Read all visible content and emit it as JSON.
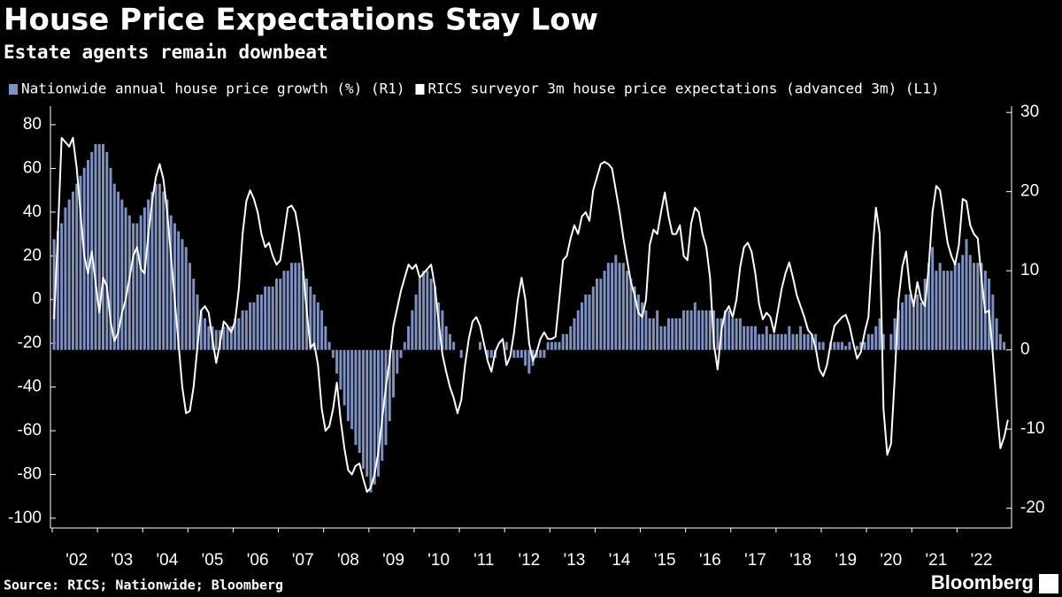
{
  "chart_data": {
    "type": "combo",
    "title": "House Price Expectations Stay Low",
    "subtitle": "Estate agents remain downbeat",
    "source": "Source: RICS; Nationwide; Bloomberg",
    "brand": "Bloomberg",
    "categories": [
      null,
      null,
      null,
      null,
      null,
      null,
      "'02",
      null,
      null,
      null,
      null,
      null,
      null,
      null,
      null,
      null,
      null,
      null,
      "'03",
      null,
      null,
      null,
      null,
      null,
      null,
      null,
      null,
      null,
      null,
      null,
      "'04",
      null,
      null,
      null,
      null,
      null,
      null,
      null,
      null,
      null,
      null,
      null,
      "'05",
      null,
      null,
      null,
      null,
      null,
      null,
      null,
      null,
      null,
      null,
      null,
      "'06",
      null,
      null,
      null,
      null,
      null,
      null,
      null,
      null,
      null,
      null,
      null,
      "'07",
      null,
      null,
      null,
      null,
      null,
      null,
      null,
      null,
      null,
      null,
      null,
      "'08",
      null,
      null,
      null,
      null,
      null,
      null,
      null,
      null,
      null,
      null,
      null,
      "'09",
      null,
      null,
      null,
      null,
      null,
      null,
      null,
      null,
      null,
      null,
      null,
      "'10",
      null,
      null,
      null,
      null,
      null,
      null,
      null,
      null,
      null,
      null,
      null,
      "'11",
      null,
      null,
      null,
      null,
      null,
      null,
      null,
      null,
      null,
      null,
      null,
      "'12",
      null,
      null,
      null,
      null,
      null,
      null,
      null,
      null,
      null,
      null,
      null,
      "'13",
      null,
      null,
      null,
      null,
      null,
      null,
      null,
      null,
      null,
      null,
      null,
      "'14",
      null,
      null,
      null,
      null,
      null,
      null,
      null,
      null,
      null,
      null,
      null,
      "'15",
      null,
      null,
      null,
      null,
      null,
      null,
      null,
      null,
      null,
      null,
      null,
      "'16",
      null,
      null,
      null,
      null,
      null,
      null,
      null,
      null,
      null,
      null,
      null,
      "'17",
      null,
      null,
      null,
      null,
      null,
      null,
      null,
      null,
      null,
      null,
      null,
      "'18",
      null,
      null,
      null,
      null,
      null,
      null,
      null,
      null,
      null,
      null,
      null,
      "'19",
      null,
      null,
      null,
      null,
      null,
      null,
      null,
      null,
      null,
      null,
      null,
      "'20",
      null,
      null,
      null,
      null,
      null,
      null,
      null,
      null,
      null,
      null,
      null,
      "'21",
      null,
      null,
      null,
      null,
      null,
      null,
      null,
      null,
      null,
      null,
      null,
      "'22",
      null,
      null,
      null,
      null,
      null,
      null,
      null
    ],
    "series": [
      {
        "name": "Nationwide annual house price growth (%) (R1)",
        "type": "bar",
        "axis": "y2",
        "color": "#7d92c1",
        "values": [
          14,
          15,
          16,
          18,
          19,
          20,
          21,
          22,
          23,
          24,
          25,
          26,
          26,
          26,
          25,
          23,
          21,
          20,
          19,
          18,
          17,
          16,
          16,
          17,
          18,
          19,
          20,
          21,
          21,
          20,
          19,
          17,
          16,
          15,
          14,
          13,
          11,
          9,
          7,
          5,
          4,
          3,
          3,
          2.5,
          2.5,
          3,
          3,
          3,
          4,
          4,
          5,
          5,
          6,
          6,
          7,
          7,
          8,
          8,
          8,
          9,
          9,
          10,
          10,
          11,
          11,
          11,
          10,
          9,
          8,
          7,
          6,
          5,
          3,
          1,
          -1,
          -3,
          -5,
          -7,
          -9,
          -10,
          -12,
          -13,
          -15,
          -16,
          -18,
          -17,
          -16,
          -14,
          -12,
          -9,
          -6,
          -3,
          -1,
          1,
          3,
          5,
          7,
          9,
          10,
          10,
          9,
          8,
          6,
          5,
          3,
          2,
          1,
          0,
          -1,
          0,
          0,
          0,
          0,
          1,
          0,
          -1,
          -1,
          -1,
          0,
          0,
          1,
          0,
          -1,
          -1,
          -1,
          -2,
          -3,
          -2,
          -1,
          -1,
          -1,
          1,
          1,
          1,
          1,
          2,
          2,
          3,
          4,
          5,
          6,
          7,
          7,
          8,
          9,
          9,
          10,
          11,
          11,
          12,
          11,
          11,
          10,
          9,
          8,
          7,
          6,
          5,
          4,
          4,
          5,
          3,
          3,
          4,
          4,
          4,
          4,
          5,
          5,
          5,
          6,
          5,
          5,
          5,
          5,
          5,
          4,
          4,
          5,
          5,
          4,
          4,
          4,
          3,
          3,
          3,
          3,
          2,
          2,
          3,
          2,
          2,
          2,
          2,
          2,
          3,
          2,
          2,
          3,
          2,
          2,
          2,
          2,
          1,
          1,
          0,
          1,
          1,
          1,
          1,
          0.5,
          1,
          0,
          0.5,
          1,
          1,
          2,
          2,
          3,
          4,
          2,
          0,
          2,
          4,
          5,
          6,
          7,
          7,
          6,
          7,
          6,
          9,
          11,
          13,
          10,
          11,
          10,
          10,
          10,
          11,
          11,
          12,
          14,
          12,
          11,
          11,
          11,
          10,
          9,
          7,
          4,
          2,
          1,
          null
        ]
      },
      {
        "name": "RICS surveyor 3m house price expectations (advanced 3m) (L1)",
        "type": "line",
        "axis": "y",
        "color": "#ffffff",
        "values": [
          -9,
          30,
          74,
          72,
          70,
          74,
          60,
          40,
          20,
          12,
          22,
          8,
          -6,
          10,
          6,
          -10,
          -19,
          -15,
          -6,
          0,
          10,
          20,
          24,
          14,
          12,
          30,
          45,
          56,
          62,
          55,
          40,
          20,
          0,
          -20,
          -40,
          -52,
          -51,
          -40,
          -22,
          -5,
          -3,
          -6,
          -18,
          -29,
          -20,
          -10,
          -12,
          -15,
          -10,
          5,
          30,
          45,
          50,
          46,
          40,
          30,
          24,
          26,
          20,
          16,
          18,
          30,
          42,
          43,
          40,
          30,
          15,
          -5,
          -22,
          -20,
          -30,
          -50,
          -60,
          -58,
          -50,
          -38,
          -55,
          -68,
          -78,
          -80,
          -76,
          -75,
          -82,
          -88,
          -86,
          -80,
          -70,
          -55,
          -40,
          -28,
          -12,
          -4,
          4,
          10,
          16,
          14,
          16,
          10,
          12,
          14,
          16,
          6,
          -10,
          -25,
          -33,
          -40,
          -45,
          -52,
          -46,
          -30,
          -18,
          -10,
          -8,
          -12,
          -20,
          -28,
          -33,
          -24,
          -20,
          -18,
          -30,
          -26,
          -15,
          0,
          10,
          0,
          -20,
          -28,
          -24,
          -18,
          -15,
          -18,
          -18,
          -17,
          0,
          18,
          20,
          28,
          34,
          30,
          38,
          40,
          36,
          50,
          56,
          62,
          63,
          62,
          60,
          50,
          40,
          28,
          18,
          8,
          2,
          -6,
          -8,
          0,
          25,
          32,
          30,
          40,
          49,
          38,
          30,
          30,
          34,
          20,
          18,
          35,
          42,
          40,
          30,
          24,
          10,
          -20,
          -32,
          -14,
          -6,
          -3,
          -8,
          0,
          15,
          24,
          26,
          22,
          12,
          -2,
          -9,
          -6,
          -8,
          -15,
          -5,
          5,
          12,
          17,
          10,
          2,
          -3,
          -8,
          -14,
          -16,
          -22,
          -32,
          -35,
          -30,
          -20,
          -12,
          -10,
          -8,
          -7,
          -12,
          -20,
          -27,
          -24,
          -15,
          -8,
          20,
          42,
          30,
          -50,
          -71,
          -66,
          -35,
          0,
          15,
          22,
          5,
          -3,
          8,
          0,
          -3,
          15,
          40,
          52,
          50,
          38,
          26,
          20,
          16,
          25,
          46,
          45,
          34,
          30,
          28,
          10,
          -6,
          -5,
          -25,
          -48,
          -68,
          -63,
          -55
        ]
      }
    ],
    "ylim": [
      -104.5,
      88.5
    ],
    "yticks": [
      80,
      60,
      40,
      20,
      0,
      -20,
      -40,
      -60,
      -80,
      -100
    ],
    "y2lim": [
      -22.5,
      30.8
    ],
    "y2ticks": [
      30,
      20,
      10,
      0,
      -10,
      -20
    ]
  }
}
